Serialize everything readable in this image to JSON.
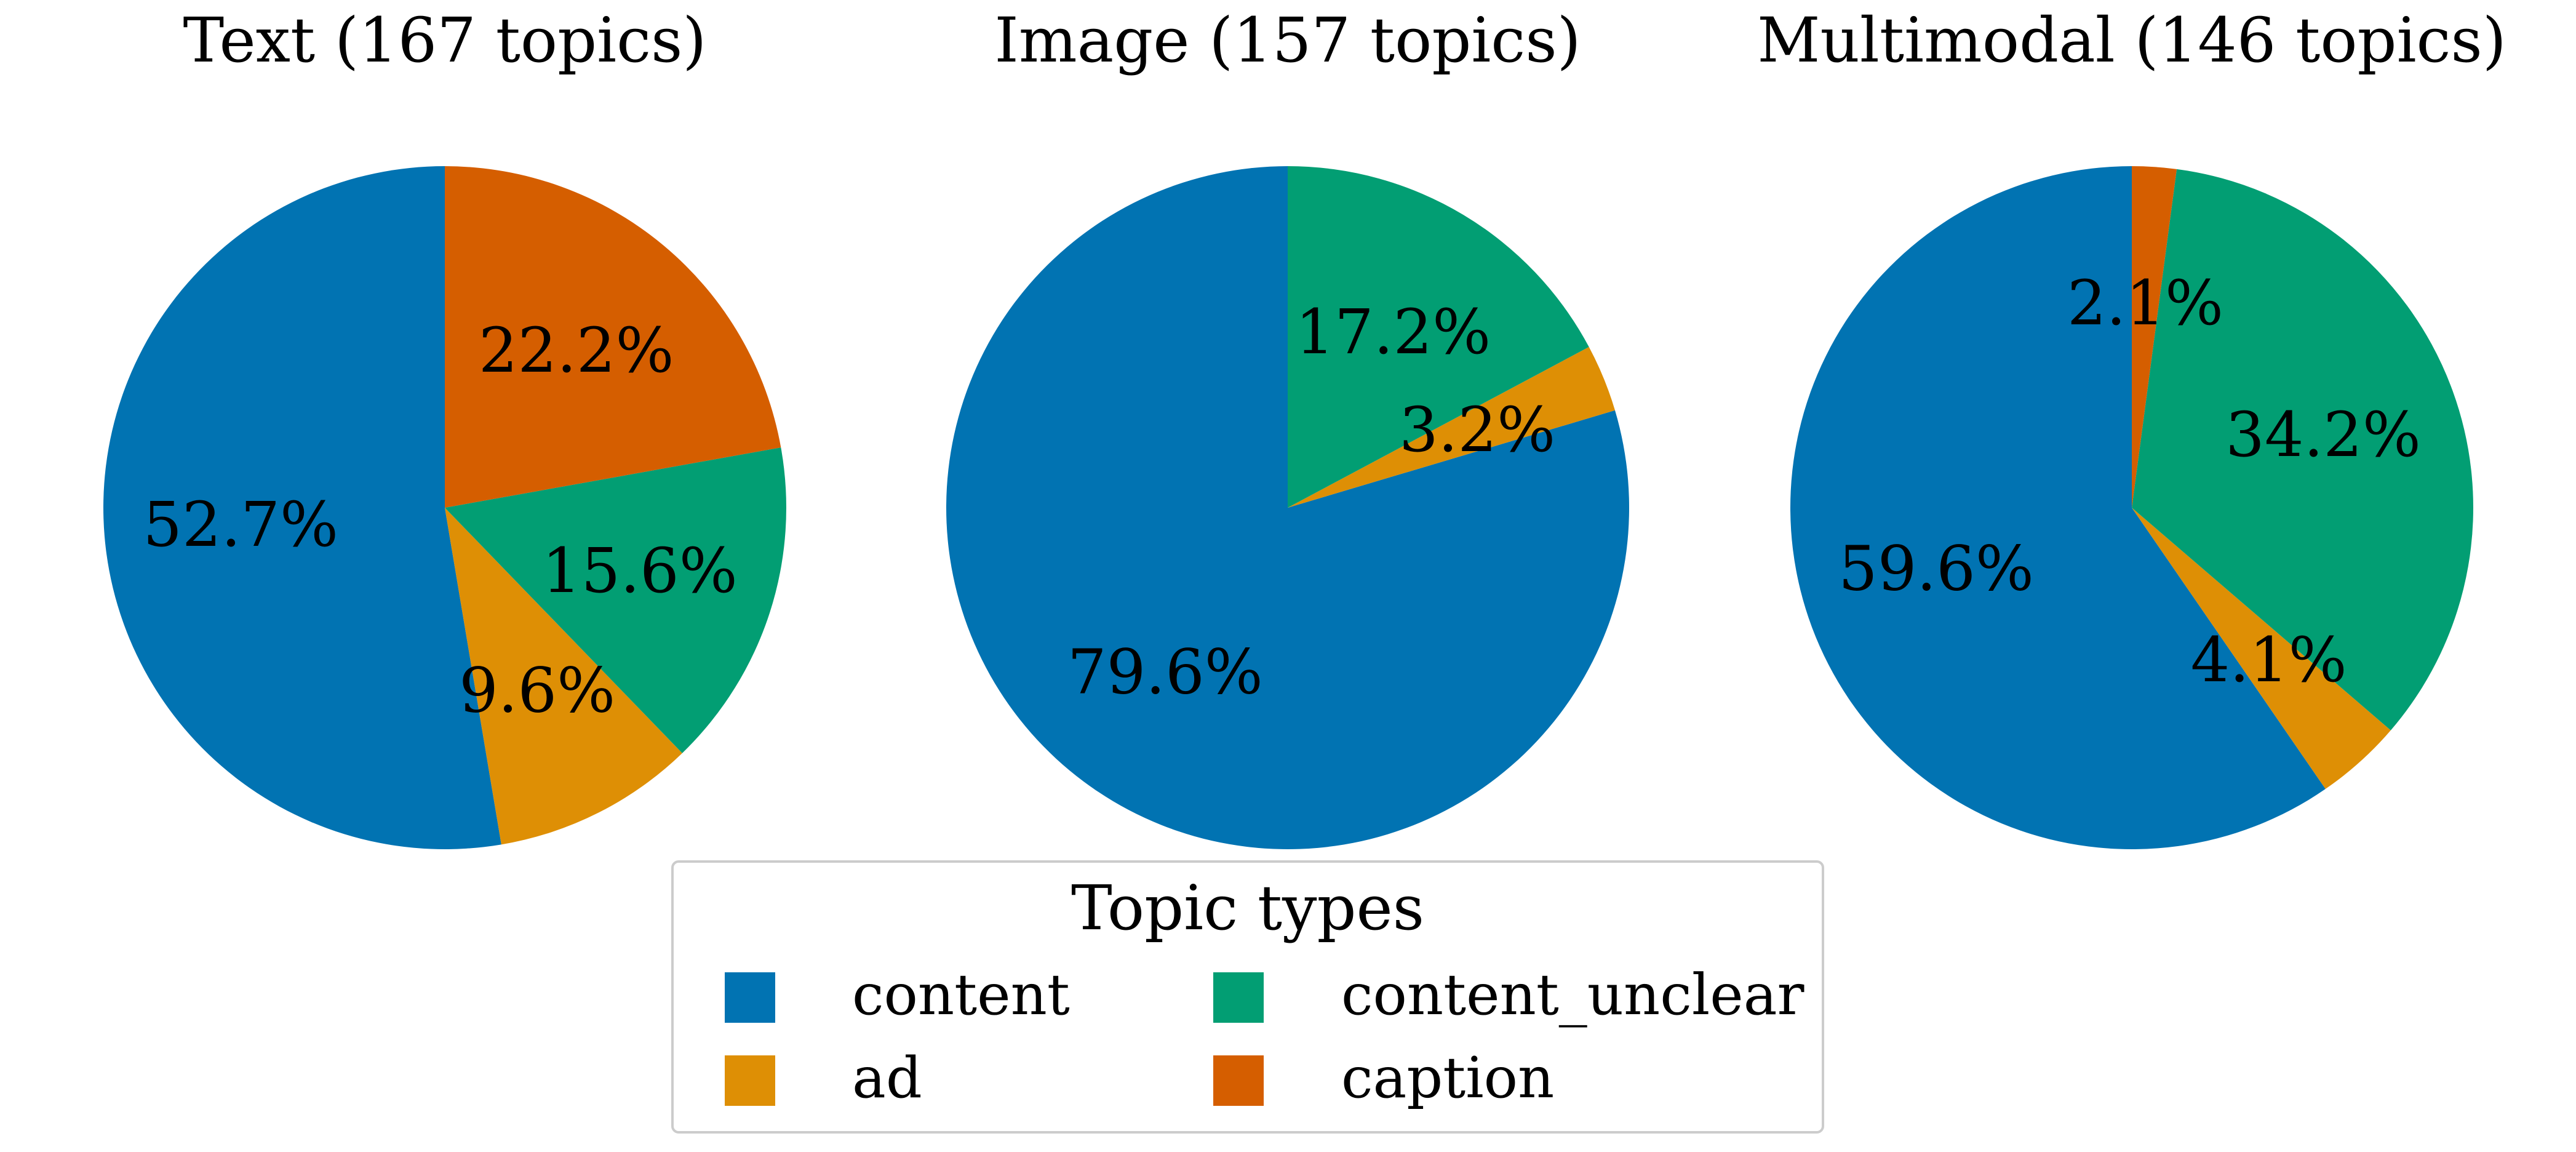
{
  "chart_data": [
    {
      "type": "pie",
      "title": "Text (167 topics)",
      "slices": [
        {
          "label": "content",
          "value": 52.7,
          "display": "52.7%"
        },
        {
          "label": "ad",
          "value": 9.6,
          "display": "9.6%"
        },
        {
          "label": "content_unclear",
          "value": 15.6,
          "display": "15.6%"
        },
        {
          "label": "caption",
          "value": 22.2,
          "display": "22.2%"
        }
      ]
    },
    {
      "type": "pie",
      "title": "Image (157 topics)",
      "slices": [
        {
          "label": "content",
          "value": 79.6,
          "display": "79.6%"
        },
        {
          "label": "ad",
          "value": 3.2,
          "display": "3.2%"
        },
        {
          "label": "content_unclear",
          "value": 17.2,
          "display": "17.2%"
        }
      ]
    },
    {
      "type": "pie",
      "title": "Multimodal (146 topics)",
      "slices": [
        {
          "label": "content",
          "value": 59.6,
          "display": "59.6%"
        },
        {
          "label": "ad",
          "value": 4.1,
          "display": "4.1%"
        },
        {
          "label": "content_unclear",
          "value": 34.2,
          "display": "34.2%"
        },
        {
          "label": "caption",
          "value": 2.1,
          "display": "2.1%"
        }
      ]
    }
  ],
  "legend": {
    "title": "Topic types",
    "placement": "bottom-center",
    "items": [
      {
        "label": "content",
        "color": "#0173b2"
      },
      {
        "label": "ad",
        "color": "#de8f05"
      },
      {
        "label": "content_unclear",
        "color": "#029e73"
      },
      {
        "label": "caption",
        "color": "#d55e00"
      }
    ]
  },
  "colors": {
    "content": "#0173b2",
    "ad": "#de8f05",
    "content_unclear": "#029e73",
    "caption": "#d55e00"
  }
}
